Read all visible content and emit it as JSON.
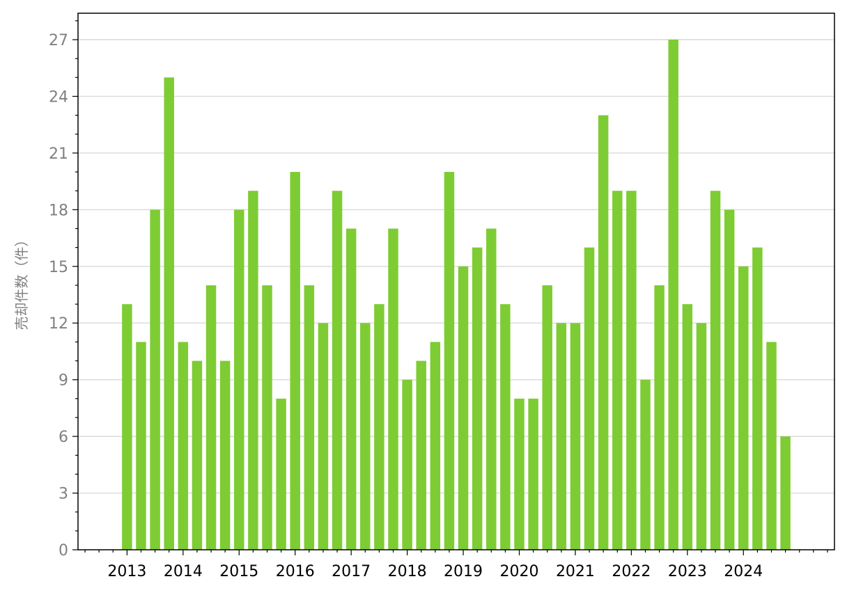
{
  "chart_data": {
    "type": "bar",
    "ylabel": "売却件数（件）",
    "ylim": [
      0,
      28.4
    ],
    "yticks": [
      0,
      3,
      6,
      9,
      12,
      15,
      18,
      21,
      24,
      27
    ],
    "xtick_labels": [
      "2013",
      "2014",
      "2015",
      "2016",
      "2017",
      "2018",
      "2019",
      "2020",
      "2021",
      "2022",
      "2023",
      "2024"
    ],
    "periods_per_year": 4,
    "grid": "horizontal",
    "values": [
      13,
      11,
      18,
      25,
      11,
      10,
      14,
      10,
      18,
      19,
      14,
      8,
      20,
      14,
      12,
      19,
      17,
      12,
      13,
      17,
      9,
      10,
      11,
      20,
      15,
      16,
      17,
      13,
      8,
      8,
      14,
      12,
      12,
      16,
      23,
      19,
      19,
      9,
      14,
      27,
      13,
      12,
      19,
      18,
      15,
      16,
      11,
      6
    ],
    "colors": {
      "bar": "#7ECC33",
      "grid": "#D9D9D9",
      "axis": "#000000",
      "ytick_text": "#808080",
      "ylabel_text": "#808080"
    }
  }
}
